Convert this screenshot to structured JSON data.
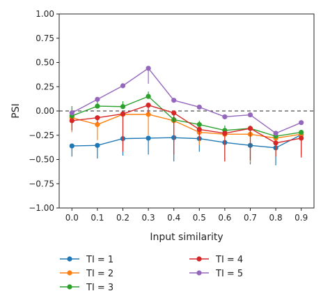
{
  "chart_data": {
    "type": "line",
    "title": "",
    "xlabel": "Input similarity",
    "ylabel": "PSI",
    "x": [
      0.0,
      0.1,
      0.2,
      0.3,
      0.4,
      0.5,
      0.6,
      0.7,
      0.8,
      0.9
    ],
    "x_tick_labels": [
      "0.0",
      "0.1",
      "0.2",
      "0.3",
      "0.4",
      "0.5",
      "0.6",
      "0.7",
      "0.8",
      "0.9"
    ],
    "xlim": [
      -0.05,
      0.95
    ],
    "ylim": [
      -1.0,
      1.0
    ],
    "y_ticks": [
      1.0,
      0.75,
      0.5,
      0.25,
      0.0,
      -0.25,
      -0.5,
      -0.75,
      -1.0
    ],
    "y_tick_labels": [
      "1.00",
      "0.75",
      "0.50",
      "0.25",
      "0.00",
      "−0.25",
      "−0.50",
      "−0.75",
      "−1.00"
    ],
    "reference_line": {
      "y": 0.0,
      "style": "dashed",
      "color": "#222222"
    },
    "grid": false,
    "legend_position": "below",
    "series": [
      {
        "name": "TI = 1",
        "color": "#1f77b4",
        "values": [
          -0.36,
          -0.355,
          -0.285,
          -0.28,
          -0.275,
          -0.285,
          -0.325,
          -0.355,
          -0.38,
          -0.245
        ],
        "err_low": [
          -0.47,
          -0.49,
          -0.46,
          -0.45,
          -0.52,
          -0.42,
          -0.52,
          -0.55,
          -0.56,
          -0.26
        ],
        "err_high": [
          -0.36,
          -0.355,
          -0.285,
          -0.28,
          -0.275,
          -0.285,
          -0.325,
          -0.355,
          -0.38,
          -0.245
        ]
      },
      {
        "name": "TI = 2",
        "color": "#ff7f0e",
        "values": [
          -0.07,
          -0.14,
          -0.035,
          -0.035,
          -0.1,
          -0.22,
          -0.24,
          -0.24,
          -0.28,
          -0.24
        ],
        "err_low": [
          -0.22,
          -0.3,
          -0.35,
          -0.25,
          -0.3,
          -0.35,
          -0.52,
          -0.53,
          -0.46,
          -0.45
        ],
        "err_high": [
          -0.07,
          -0.14,
          -0.035,
          -0.035,
          -0.1,
          -0.22,
          -0.24,
          -0.24,
          -0.28,
          -0.24
        ]
      },
      {
        "name": "TI = 3",
        "color": "#2ca02c",
        "values": [
          -0.05,
          0.05,
          0.045,
          0.15,
          -0.09,
          -0.14,
          -0.2,
          -0.18,
          -0.26,
          -0.22
        ],
        "err_low": [
          -0.05,
          0.05,
          0.045,
          0.15,
          -0.09,
          -0.14,
          -0.2,
          -0.18,
          -0.26,
          -0.22
        ],
        "err_high": [
          0.05,
          0.1,
          0.1,
          0.2,
          -0.02,
          -0.1,
          -0.15,
          -0.15,
          -0.24,
          -0.2
        ]
      },
      {
        "name": "TI = 4",
        "color": "#d62728",
        "values": [
          -0.1,
          -0.07,
          -0.03,
          0.06,
          -0.02,
          -0.19,
          -0.23,
          -0.18,
          -0.33,
          -0.28
        ],
        "err_low": [
          -0.2,
          -0.12,
          -0.42,
          -0.02,
          -0.45,
          -0.3,
          -0.52,
          -0.51,
          -0.47,
          -0.48
        ],
        "err_high": [
          -0.1,
          -0.07,
          -0.03,
          0.06,
          -0.02,
          -0.19,
          -0.23,
          -0.18,
          -0.33,
          -0.28
        ]
      },
      {
        "name": "TI = 5",
        "color": "#9467bd",
        "values": [
          -0.02,
          0.12,
          0.26,
          0.44,
          0.11,
          0.04,
          -0.06,
          -0.04,
          -0.23,
          -0.12
        ],
        "err_low": [
          -0.02,
          0.12,
          0.26,
          0.28,
          0.11,
          0.04,
          -0.06,
          -0.04,
          -0.23,
          -0.12
        ],
        "err_high": [
          -0.02,
          0.12,
          0.26,
          0.44,
          0.11,
          0.04,
          -0.06,
          -0.04,
          -0.23,
          -0.12
        ]
      }
    ]
  }
}
